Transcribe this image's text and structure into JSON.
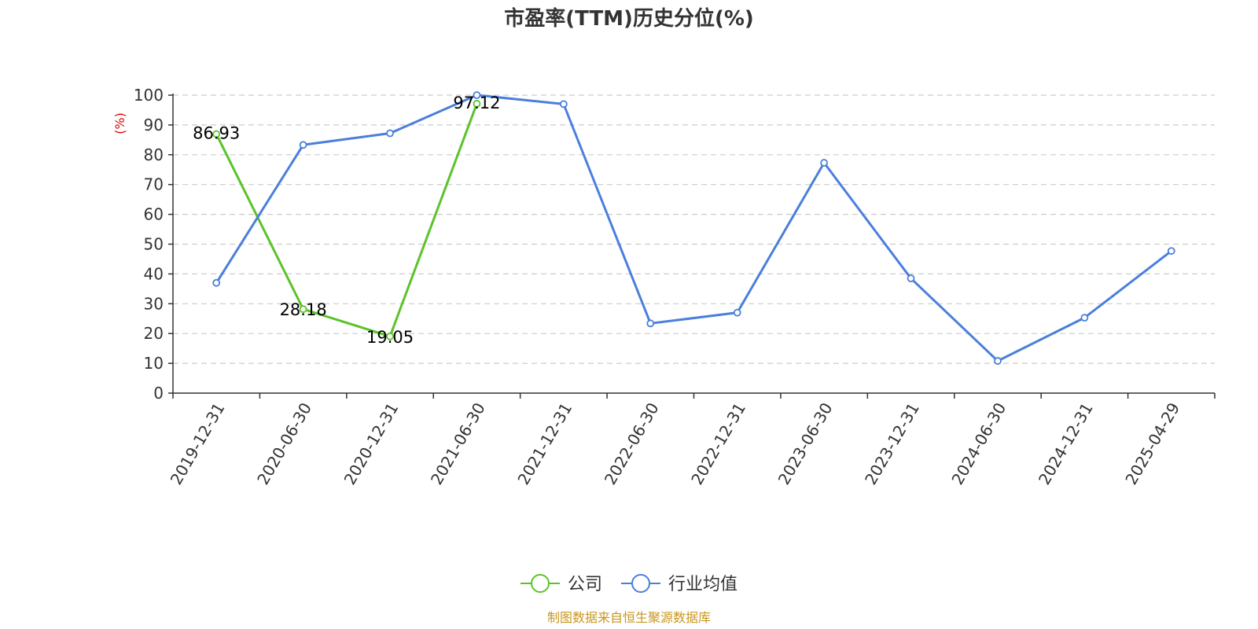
{
  "title": "市盈率(TTM)历史分位(%)",
  "source_text": "制图数据来自恒生聚源数据库",
  "colors": {
    "company": "#5bc32a",
    "industry": "#4a7fdc",
    "ylabel": "#e00000",
    "grid": "#cccccc",
    "axis": "#333333",
    "source": "#c8961e"
  },
  "chart_data": {
    "type": "line",
    "title": "市盈率(TTM)历史分位(%)",
    "xlabel": "",
    "ylabel": "(%)",
    "ylim": [
      0,
      100
    ],
    "yticks": [
      0,
      10,
      20,
      30,
      40,
      50,
      60,
      70,
      80,
      90,
      100
    ],
    "categories": [
      "2019-12-31",
      "2020-06-30",
      "2020-12-31",
      "2021-06-30",
      "2021-12-31",
      "2022-06-30",
      "2022-12-31",
      "2023-06-30",
      "2023-12-31",
      "2024-06-30",
      "2024-12-31",
      "2025-04-29"
    ],
    "grid": true,
    "legend_position": "bottom-center",
    "series": [
      {
        "name": "公司",
        "color": "#5bc32a",
        "values": [
          86.93,
          28.18,
          19.05,
          97.12,
          null,
          null,
          null,
          null,
          null,
          null,
          null,
          null
        ],
        "labels": [
          "86.93",
          "28.18",
          "19.05",
          "97.12",
          null,
          null,
          null,
          null,
          null,
          null,
          null,
          null
        ]
      },
      {
        "name": "行业均值",
        "color": "#4a7fdc",
        "values": [
          37.0,
          83.3,
          87.2,
          100.0,
          97.0,
          23.4,
          27.0,
          77.3,
          38.5,
          10.8,
          25.3,
          47.7
        ]
      }
    ]
  }
}
